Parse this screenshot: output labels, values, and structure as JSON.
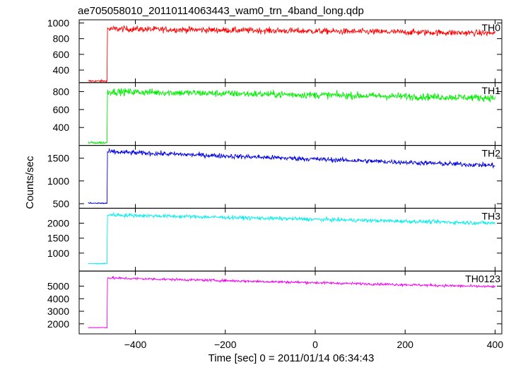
{
  "chart_data": {
    "type": "line",
    "title": "ae705058010_20110114063443_wam0_trn_4band_long.qdp",
    "xlabel": "Time [sec] 0 = 2011/01/14 06:34:43",
    "ylabel": "Counts/sec",
    "xlim": [
      -525,
      415
    ],
    "xticks": [
      -400,
      -200,
      0,
      200,
      400
    ],
    "x_step": 1,
    "onset_x": -462,
    "x_start": -505,
    "x_end": 400,
    "panels": [
      {
        "name": "TH0",
        "color": "#ff0000",
        "ylim": [
          240,
          1040
        ],
        "yticks": [
          400,
          600,
          800,
          1000
        ],
        "pre_level": 260,
        "post_start": 925,
        "post_end": 870,
        "noise": 28
      },
      {
        "name": "TH1",
        "color": "#00ee00",
        "ylim": [
          200,
          900
        ],
        "yticks": [
          400,
          600,
          800
        ],
        "pre_level": 230,
        "post_start": 800,
        "post_end": 730,
        "noise": 28
      },
      {
        "name": "TH2",
        "color": "#0000dd",
        "ylim": [
          400,
          1780
        ],
        "yticks": [
          500,
          1000,
          1500
        ],
        "pre_level": 510,
        "post_start": 1640,
        "post_end": 1340,
        "noise": 38
      },
      {
        "name": "TH3",
        "color": "#00eeee",
        "ylim": [
          400,
          2500
        ],
        "yticks": [
          1000,
          1500,
          2000
        ],
        "pre_level": 650,
        "post_start": 2280,
        "post_end": 2000,
        "noise": 45
      },
      {
        "name": "TH0123",
        "color": "#ee00ee",
        "ylim": [
          1200,
          6200
        ],
        "yticks": [
          2000,
          3000,
          4000,
          5000
        ],
        "pre_level": 1700,
        "post_start": 5650,
        "post_end": 4950,
        "noise": 70
      }
    ]
  }
}
